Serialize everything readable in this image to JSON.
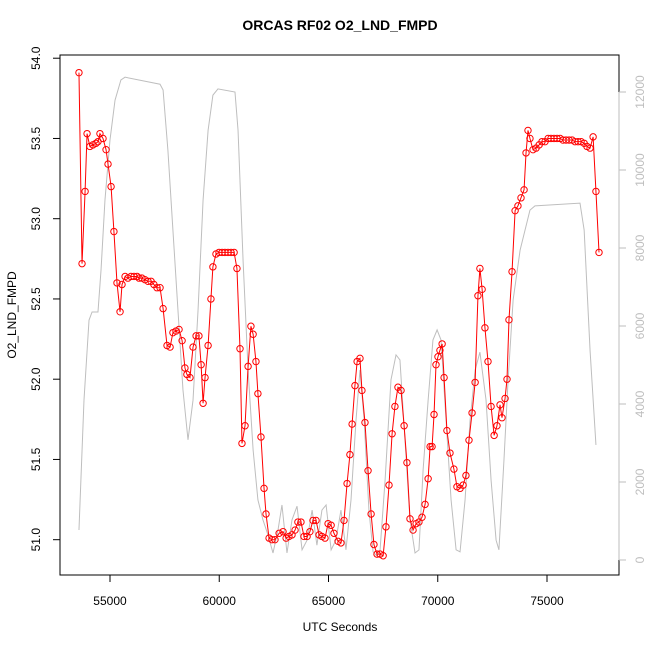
{
  "chart_data": {
    "type": "line",
    "title": "ORCAS RF02 O2_LND_FMPD",
    "xlabel": "UTC Seconds",
    "ylabel": "O2_LND_FMPD",
    "xlim": [
      52712,
      78295
    ],
    "xticks": [
      55000,
      60000,
      65000,
      70000,
      75000
    ],
    "ylim": [
      50.78,
      54.02
    ],
    "yticks": [
      {
        "value": 51,
        "label": "51.0"
      },
      51.5,
      {
        "value": 52,
        "label": "52.0"
      },
      52.5,
      {
        "value": 53,
        "label": "53.0"
      },
      53.5,
      {
        "value": 54,
        "label": "54.0"
      }
    ],
    "y2lim": [
      -385,
      12949
    ],
    "y2ticks": [
      0,
      2000,
      4000,
      6000,
      8000,
      10000,
      12000
    ],
    "y2color": "#bebebe",
    "series": [
      {
        "color": "#bebebe",
        "axis": "y2",
        "marker": "none",
        "x": [
          53580,
          53810,
          54040,
          54180,
          54450,
          54590,
          54770,
          55000,
          55230,
          55500,
          55690,
          57290,
          57430,
          57650,
          57880,
          58110,
          58340,
          58570,
          58800,
          59030,
          59260,
          59490,
          59710,
          59940,
          60720,
          60860,
          61090,
          61320,
          61550,
          61770,
          62000,
          62230,
          62460,
          62690,
          62870,
          63100,
          63330,
          63560,
          63790,
          64020,
          64250,
          64470,
          64700,
          64890,
          65120,
          65340,
          65570,
          65800,
          66030,
          66260,
          66440,
          66630,
          66850,
          67040,
          67220,
          67360,
          67590,
          67860,
          68090,
          68270,
          68500,
          68730,
          68960,
          69140,
          69330,
          69560,
          69780,
          69970,
          70150,
          70380,
          70610,
          70840,
          71020,
          71250,
          71480,
          71710,
          71930,
          72210,
          72440,
          72670,
          72800,
          73030,
          73220,
          73450,
          73770,
          74220,
          74450,
          76510,
          76700,
          76970,
          77240
        ],
        "values": [
          770,
          4100,
          6150,
          6360,
          6360,
          7440,
          9230,
          10770,
          11790,
          12310,
          12380,
          12200,
          12050,
          10510,
          8460,
          6410,
          4360,
          3080,
          4100,
          6410,
          9230,
          11020,
          11920,
          12080,
          12000,
          11020,
          7690,
          4870,
          2820,
          1540,
          1030,
          640,
          180,
          770,
          1410,
          180,
          1030,
          1380,
          260,
          510,
          1280,
          380,
          1280,
          1410,
          260,
          510,
          1280,
          260,
          1540,
          3590,
          4870,
          3590,
          1280,
          210,
          100,
          260,
          2050,
          4620,
          5260,
          5130,
          3080,
          1030,
          180,
          260,
          2310,
          4100,
          5640,
          5900,
          5640,
          3590,
          1540,
          260,
          210,
          1540,
          3590,
          4870,
          5330,
          4100,
          2050,
          510,
          260,
          2560,
          4620,
          6670,
          7950,
          8970,
          9080,
          9150,
          8460,
          5380,
          2950
        ]
      },
      {
        "color": "#ff0000",
        "axis": "y",
        "marker": "circle",
        "x": [
          53580,
          53720,
          53860,
          53950,
          54080,
          54220,
          54360,
          54450,
          54540,
          54680,
          54820,
          54910,
          55050,
          55180,
          55320,
          55460,
          55550,
          55690,
          55820,
          55960,
          56100,
          56240,
          56330,
          56460,
          56600,
          56740,
          56880,
          57010,
          57150,
          57290,
          57430,
          57610,
          57750,
          57880,
          58020,
          58160,
          58300,
          58430,
          58520,
          58660,
          58800,
          58940,
          59070,
          59170,
          59260,
          59350,
          59490,
          59620,
          59710,
          59850,
          59990,
          60130,
          60260,
          60400,
          60540,
          60680,
          60810,
          60950,
          61040,
          61180,
          61320,
          61450,
          61550,
          61680,
          61770,
          61910,
          62050,
          62140,
          62280,
          62410,
          62550,
          62740,
          62920,
          63060,
          63190,
          63330,
          63470,
          63600,
          63740,
          63880,
          64020,
          64150,
          64290,
          64430,
          64570,
          64700,
          64840,
          64980,
          65120,
          65250,
          65440,
          65570,
          65710,
          65850,
          65980,
          66080,
          66210,
          66310,
          66440,
          66530,
          66670,
          66810,
          66950,
          67080,
          67220,
          67360,
          67500,
          67630,
          67770,
          67910,
          68040,
          68180,
          68320,
          68460,
          68590,
          68730,
          68870,
          69010,
          69140,
          69280,
          69420,
          69560,
          69650,
          69740,
          69830,
          69920,
          70010,
          70100,
          70200,
          70290,
          70420,
          70560,
          70740,
          70880,
          71020,
          71160,
          71290,
          71430,
          71570,
          71710,
          71840,
          71930,
          72030,
          72160,
          72300,
          72440,
          72580,
          72710,
          72850,
          72940,
          73080,
          73170,
          73260,
          73400,
          73540,
          73670,
          73810,
          73950,
          74040,
          74130,
          74220,
          74360,
          74500,
          74640,
          74770,
          74910,
          75050,
          75180,
          75320,
          75460,
          75600,
          75730,
          75870,
          76010,
          76150,
          76280,
          76420,
          76560,
          76700,
          76830,
          76970,
          77110,
          77240,
          77380
        ],
        "values": [
          53.91,
          52.72,
          53.17,
          53.53,
          53.45,
          53.46,
          53.47,
          53.48,
          53.53,
          53.5,
          53.43,
          53.34,
          53.2,
          52.92,
          52.6,
          52.42,
          52.59,
          52.64,
          52.63,
          52.64,
          52.64,
          52.64,
          52.63,
          52.63,
          52.62,
          52.61,
          52.61,
          52.59,
          52.57,
          52.57,
          52.44,
          52.21,
          52.2,
          52.29,
          52.3,
          52.31,
          52.24,
          52.07,
          52.03,
          52.01,
          52.2,
          52.27,
          52.27,
          52.09,
          51.85,
          52.01,
          52.21,
          52.5,
          52.7,
          52.78,
          52.79,
          52.79,
          52.79,
          52.79,
          52.79,
          52.79,
          52.69,
          52.19,
          51.6,
          51.71,
          52.08,
          52.33,
          52.28,
          52.11,
          51.91,
          51.64,
          51.32,
          51.16,
          51.01,
          51,
          51,
          51.04,
          51.05,
          51.01,
          51.02,
          51.03,
          51.06,
          51.11,
          51.11,
          51.02,
          51.02,
          51.05,
          51.12,
          51.12,
          51.03,
          51.02,
          51.01,
          51.1,
          51.09,
          51.04,
          50.99,
          50.98,
          51.12,
          51.35,
          51.53,
          51.72,
          51.96,
          52.11,
          52.13,
          51.93,
          51.73,
          51.43,
          51.16,
          50.97,
          50.91,
          50.91,
          50.9,
          51.08,
          51.34,
          51.66,
          51.83,
          51.95,
          51.93,
          51.71,
          51.48,
          51.13,
          51.06,
          51.1,
          51.11,
          51.14,
          51.22,
          51.38,
          51.58,
          51.58,
          51.78,
          52.09,
          52.14,
          52.18,
          52.22,
          52.01,
          51.68,
          51.54,
          51.44,
          51.33,
          51.32,
          51.34,
          51.4,
          51.62,
          51.79,
          51.98,
          52.52,
          52.69,
          52.56,
          52.32,
          52.11,
          51.83,
          51.65,
          51.71,
          51.84,
          51.76,
          51.88,
          52,
          52.37,
          52.67,
          53.05,
          53.08,
          53.13,
          53.18,
          53.41,
          53.55,
          53.5,
          53.43,
          53.44,
          53.46,
          53.48,
          53.48,
          53.5,
          53.5,
          53.5,
          53.5,
          53.5,
          53.49,
          53.49,
          53.49,
          53.49,
          53.48,
          53.48,
          53.48,
          53.47,
          53.45,
          53.44,
          53.51,
          53.17,
          52.79
        ]
      }
    ]
  }
}
